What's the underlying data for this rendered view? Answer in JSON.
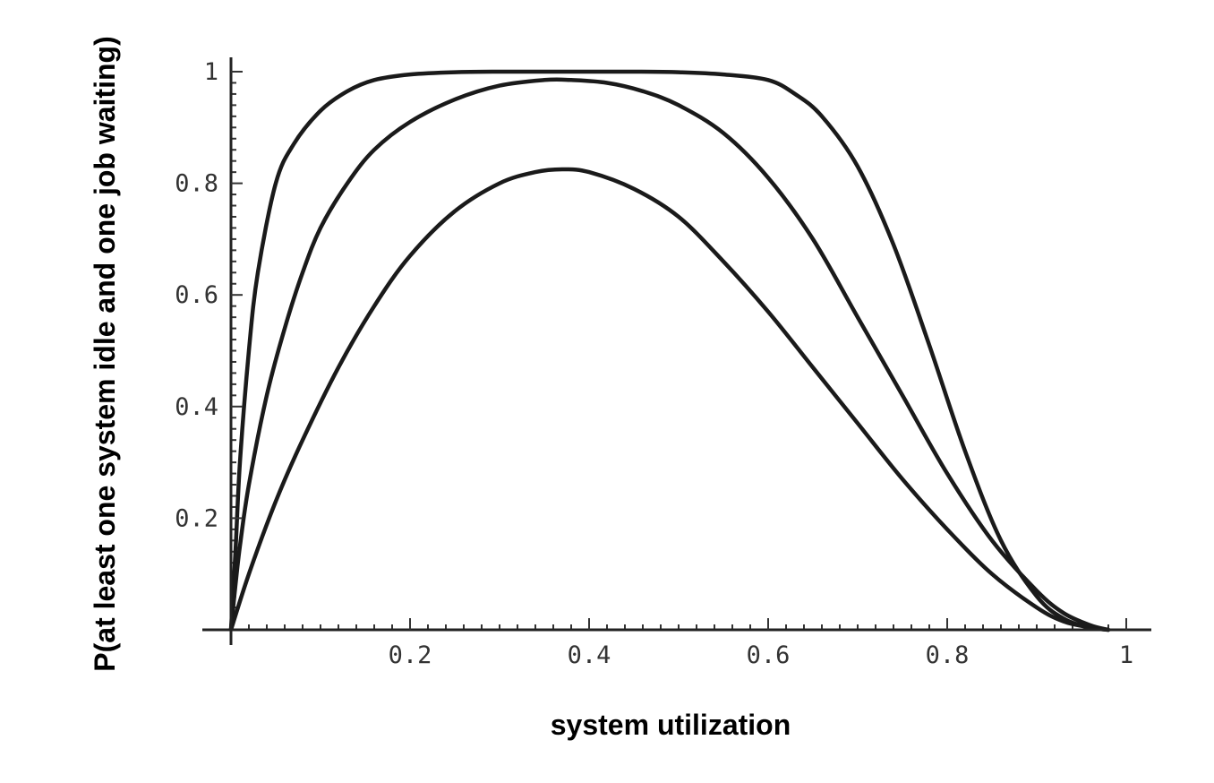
{
  "chart_data": {
    "type": "line",
    "title": "",
    "xlabel": "system utilization",
    "ylabel": "P(at least one system idle and one job waiting)",
    "xlim": [
      0,
      1
    ],
    "ylim": [
      0,
      1
    ],
    "x_ticks": [
      0.2,
      0.4,
      0.6,
      0.8,
      1
    ],
    "x_tick_labels": [
      "0.2",
      "0.4",
      "0.6",
      "0.8",
      "1"
    ],
    "y_ticks": [
      0.2,
      0.4,
      0.6,
      0.8,
      1
    ],
    "y_tick_labels": [
      "0.2",
      "0.4",
      "0.6",
      "0.8",
      "1"
    ],
    "grid": false,
    "legend": "none",
    "line_color": "#1a1a1a",
    "series": [
      {
        "x": [
          0,
          0.005,
          0.01,
          0.02,
          0.03,
          0.05,
          0.07,
          0.1,
          0.13,
          0.16,
          0.2,
          0.25,
          0.3,
          0.35,
          0.4,
          0.45,
          0.5,
          0.55,
          0.6,
          0.63,
          0.66,
          0.7,
          0.74,
          0.78,
          0.82,
          0.86,
          0.9,
          0.93,
          0.96,
          0.98
        ],
        "y": [
          0,
          0.14,
          0.3,
          0.5,
          0.64,
          0.8,
          0.87,
          0.93,
          0.965,
          0.985,
          0.995,
          0.999,
          1,
          1,
          1,
          1,
          0.999,
          0.995,
          0.985,
          0.96,
          0.92,
          0.83,
          0.69,
          0.51,
          0.32,
          0.16,
          0.06,
          0.02,
          0.004,
          0
        ]
      },
      {
        "x": [
          0,
          0.005,
          0.01,
          0.02,
          0.04,
          0.06,
          0.08,
          0.1,
          0.13,
          0.16,
          0.2,
          0.25,
          0.3,
          0.35,
          0.38,
          0.42,
          0.46,
          0.5,
          0.55,
          0.6,
          0.65,
          0.7,
          0.75,
          0.8,
          0.85,
          0.9,
          0.93,
          0.96,
          0.98
        ],
        "y": [
          0,
          0.08,
          0.15,
          0.26,
          0.42,
          0.54,
          0.64,
          0.72,
          0.8,
          0.86,
          0.91,
          0.95,
          0.975,
          0.985,
          0.985,
          0.98,
          0.965,
          0.94,
          0.89,
          0.81,
          0.7,
          0.56,
          0.42,
          0.28,
          0.16,
          0.07,
          0.03,
          0.008,
          0
        ]
      },
      {
        "x": [
          0,
          0.02,
          0.05,
          0.08,
          0.12,
          0.16,
          0.2,
          0.25,
          0.3,
          0.34,
          0.37,
          0.4,
          0.45,
          0.5,
          0.55,
          0.6,
          0.65,
          0.7,
          0.75,
          0.8,
          0.85,
          0.9,
          0.93,
          0.96,
          0.98
        ],
        "y": [
          0,
          0.1,
          0.23,
          0.34,
          0.47,
          0.58,
          0.67,
          0.75,
          0.8,
          0.82,
          0.825,
          0.82,
          0.79,
          0.74,
          0.66,
          0.57,
          0.47,
          0.37,
          0.27,
          0.18,
          0.1,
          0.04,
          0.015,
          0.004,
          0
        ]
      }
    ]
  }
}
